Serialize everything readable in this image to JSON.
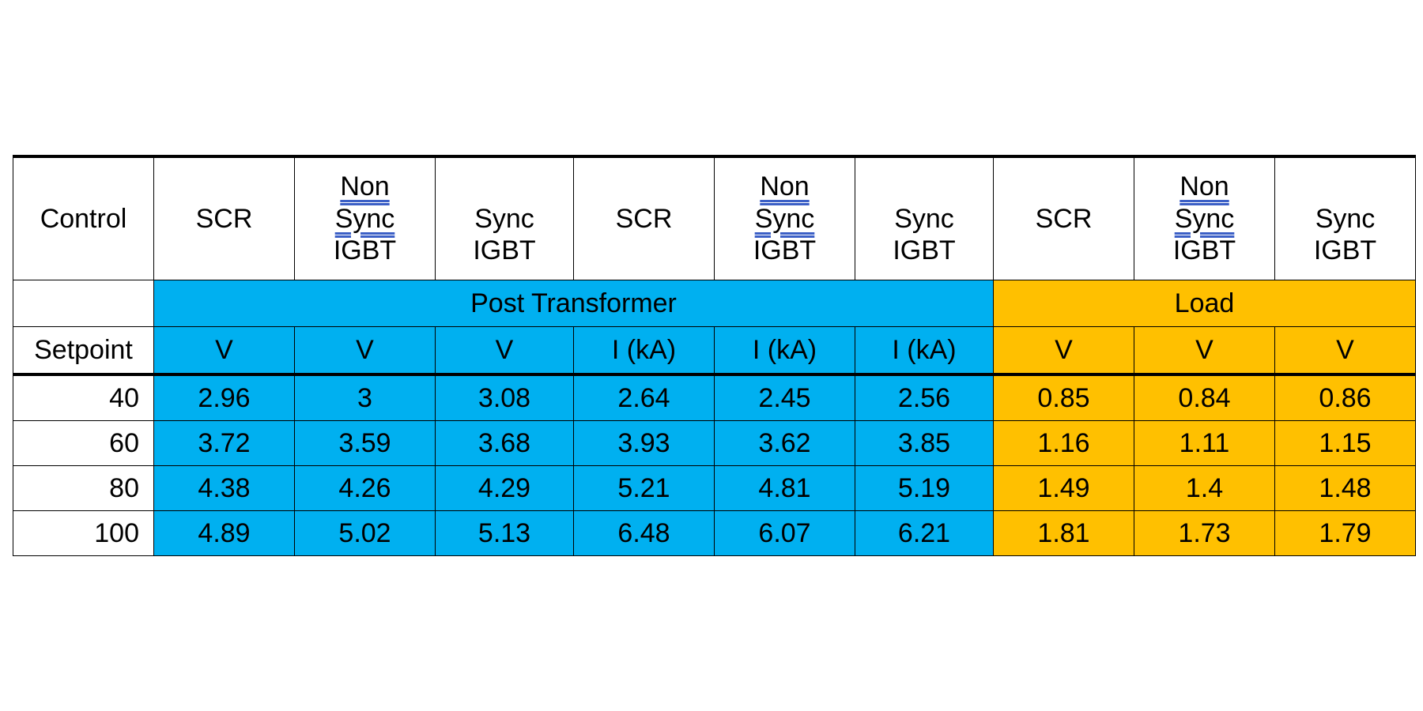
{
  "table": {
    "header": {
      "corner": "Control",
      "columns": [
        {
          "line1": "",
          "line2": "SCR",
          "line3": ""
        },
        {
          "line1": "Non",
          "line2": "Sync",
          "line3": "IGBT"
        },
        {
          "line1": "",
          "line2": "Sync",
          "line3": "IGBT"
        },
        {
          "line1": "",
          "line2": "SCR",
          "line3": ""
        },
        {
          "line1": "Non",
          "line2": "Sync",
          "line3": "IGBT"
        },
        {
          "line1": "",
          "line2": "Sync",
          "line3": "IGBT"
        },
        {
          "line1": "",
          "line2": "SCR",
          "line3": ""
        },
        {
          "line1": "Non",
          "line2": "Sync",
          "line3": "IGBT"
        },
        {
          "line1": "",
          "line2": "Sync",
          "line3": "IGBT"
        }
      ]
    },
    "groups": {
      "post_transformer": "Post Transformer",
      "load": "Load"
    },
    "units_label": "Setpoint",
    "units": [
      "V",
      "V",
      "V",
      "I (kA)",
      "I (kA)",
      "I (kA)",
      "V",
      "V",
      "V"
    ],
    "rows": [
      {
        "setpoint": "40",
        "values": [
          "2.96",
          "3",
          "3.08",
          "2.64",
          "2.45",
          "2.56",
          "0.85",
          "0.84",
          "0.86"
        ]
      },
      {
        "setpoint": "60",
        "values": [
          "3.72",
          "3.59",
          "3.68",
          "3.93",
          "3.62",
          "3.85",
          "1.16",
          "1.11",
          "1.15"
        ]
      },
      {
        "setpoint": "80",
        "values": [
          "4.38",
          "4.26",
          "4.29",
          "5.21",
          "4.81",
          "5.19",
          "1.49",
          "1.4",
          "1.48"
        ]
      },
      {
        "setpoint": "100",
        "values": [
          "4.89",
          "5.02",
          "5.13",
          "6.48",
          "6.07",
          "6.21",
          "1.81",
          "1.73",
          "1.79"
        ]
      }
    ],
    "colors": {
      "post_transformer": "#00b0f0",
      "load": "#ffc000"
    }
  }
}
